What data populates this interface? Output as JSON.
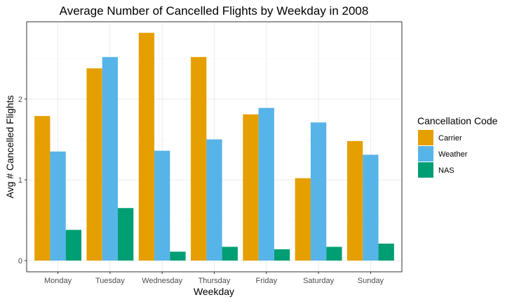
{
  "colors": {
    "carrier": "#E69F00",
    "weather": "#56B4E9",
    "nas": "#009E73",
    "grid": "#ebebeb"
  },
  "chart_data": {
    "type": "bar",
    "title": "Average Number of Cancelled Flights by Weekday in 2008",
    "xlabel": "Weekday",
    "ylabel": "Avg # Cancelled Flights",
    "ylim": [
      0,
      3.0
    ],
    "yticks": [
      0,
      1,
      2
    ],
    "grid": true,
    "legend_position": "right",
    "legend_title": "Cancellation Code",
    "categories": [
      "Monday",
      "Tuesday",
      "Wednesday",
      "Thursday",
      "Friday",
      "Saturday",
      "Sunday"
    ],
    "series": [
      {
        "name": "Carrier",
        "color": "#E69F00",
        "values": [
          1.79,
          2.38,
          2.82,
          2.52,
          1.81,
          1.02,
          1.48
        ]
      },
      {
        "name": "Weather",
        "color": "#56B4E9",
        "values": [
          1.35,
          2.52,
          1.36,
          1.5,
          1.89,
          1.71,
          1.31
        ]
      },
      {
        "name": "NAS",
        "color": "#009E73",
        "values": [
          0.38,
          0.65,
          0.11,
          0.17,
          0.14,
          0.17,
          0.21
        ]
      }
    ]
  }
}
